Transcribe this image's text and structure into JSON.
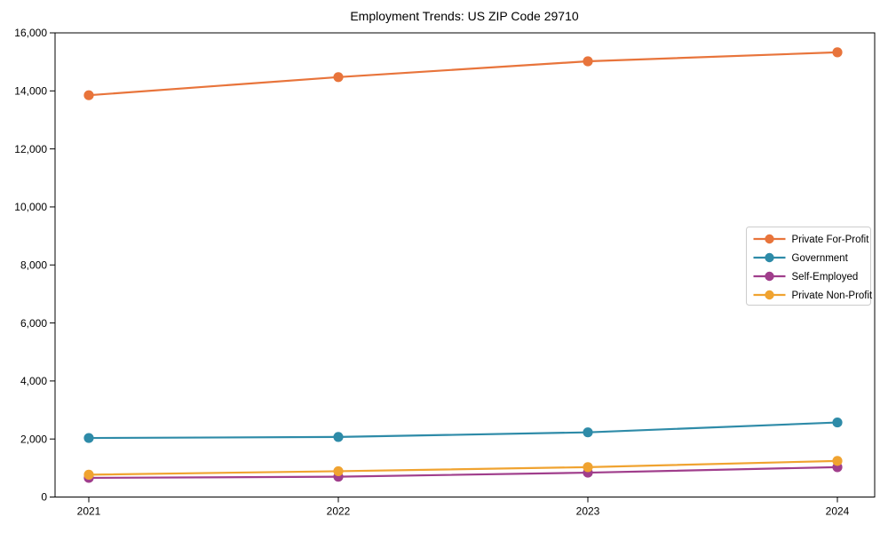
{
  "window": {
    "background_color": "#ffffff"
  },
  "chart_data": {
    "type": "line",
    "title": "Employment Trends: US ZIP Code 29710",
    "xlabel": "",
    "ylabel": "",
    "categories": [
      "2021",
      "2022",
      "2023",
      "2024"
    ],
    "series": [
      {
        "name": "Private For-Profit",
        "color": "#E8743B",
        "values": [
          13850,
          14475,
          15020,
          15330
        ]
      },
      {
        "name": "Government",
        "color": "#2E8BA8",
        "values": [
          2035,
          2070,
          2230,
          2570
        ]
      },
      {
        "name": "Self-Employed",
        "color": "#A03E8C",
        "values": [
          660,
          700,
          840,
          1030
        ]
      },
      {
        "name": "Private Non-Profit",
        "color": "#F0A330",
        "values": [
          770,
          890,
          1030,
          1245
        ]
      }
    ],
    "ylim": [
      0,
      16000
    ],
    "ytick_step": 2000,
    "ytick_labels": [
      "0",
      "2,000",
      "4,000",
      "6,000",
      "8,000",
      "10,000",
      "12,000",
      "14,000",
      "16,000"
    ],
    "grid": false,
    "legend_position": "center right",
    "marker": "circle",
    "axis_color": "#000000",
    "legend_border_color": "#cccccc"
  }
}
